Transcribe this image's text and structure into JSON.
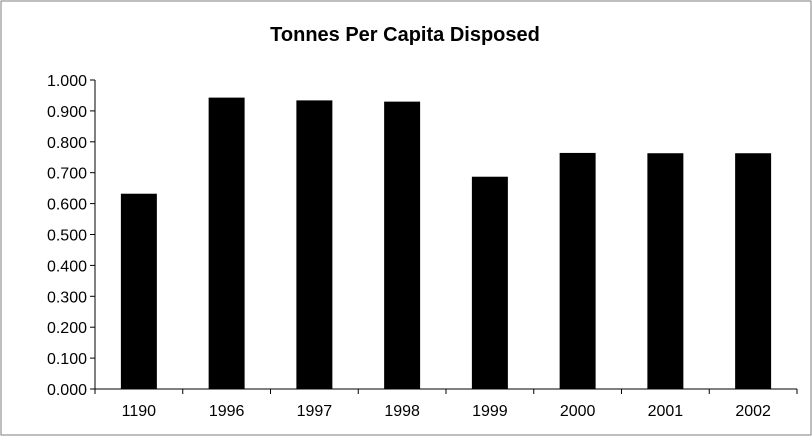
{
  "chart_data": {
    "type": "bar",
    "title": "Tonnes Per Capita Disposed",
    "xlabel": "",
    "ylabel": "",
    "categories": [
      "1190",
      "1996",
      "1997",
      "1998",
      "1999",
      "2000",
      "2001",
      "2002"
    ],
    "values": [
      0.632,
      0.943,
      0.934,
      0.93,
      0.687,
      0.764,
      0.763,
      0.763
    ],
    "ylim": [
      0,
      1.0
    ],
    "y_ticks": [
      "0.000",
      "0.100",
      "0.200",
      "0.300",
      "0.400",
      "0.500",
      "0.600",
      "0.700",
      "0.800",
      "0.900",
      "1.000"
    ],
    "grid": false,
    "legend": "none",
    "bar_color": "#000000",
    "background_color": "#ffffff"
  }
}
